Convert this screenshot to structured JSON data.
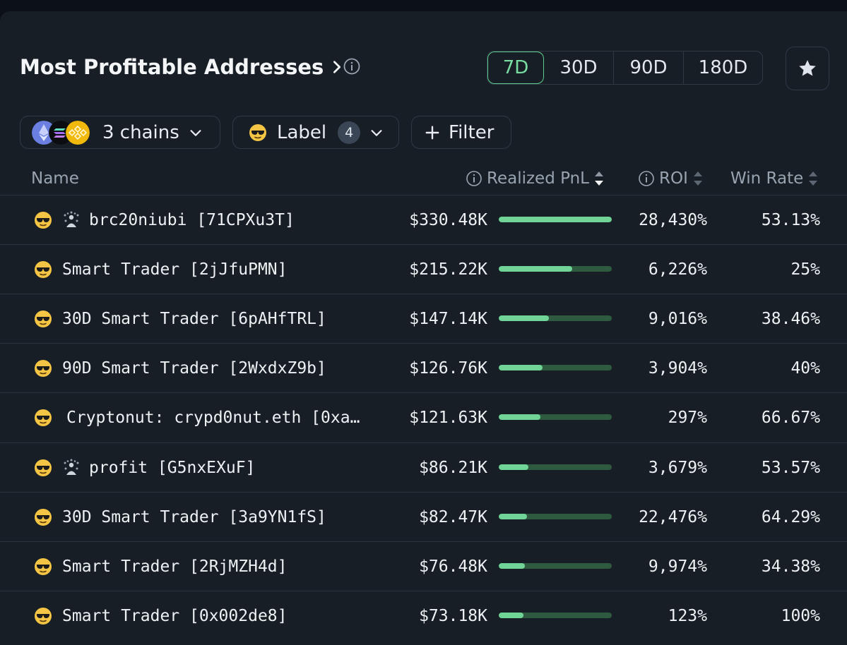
{
  "header": {
    "title": "Most Profitable Addresses",
    "timeframes": [
      {
        "label": "7D",
        "active": true
      },
      {
        "label": "30D",
        "active": false
      },
      {
        "label": "90D",
        "active": false
      },
      {
        "label": "180D",
        "active": false
      }
    ]
  },
  "filters": {
    "chains_label": "3 chains",
    "label_label": "Label",
    "label_count": "4",
    "filter_label": "Filter"
  },
  "columns": {
    "name": "Name",
    "pnl": "Realized PnL",
    "roi": "ROI",
    "win_rate": "Win Rate"
  },
  "rows": [
    {
      "name": "brc20niubi [71CPXu3T]",
      "entity_icon": true,
      "pnl": "$330.48K",
      "pnl_fraction": 1.0,
      "roi": "28,430%",
      "win_rate": "53.13%"
    },
    {
      "name": "Smart Trader [2jJfuPMN]",
      "entity_icon": false,
      "pnl": "$215.22K",
      "pnl_fraction": 0.65,
      "roi": "6,226%",
      "win_rate": "25%"
    },
    {
      "name": "30D Smart Trader [6pAHfTRL]",
      "entity_icon": false,
      "pnl": "$147.14K",
      "pnl_fraction": 0.445,
      "roi": "9,016%",
      "win_rate": "38.46%"
    },
    {
      "name": "90D Smart Trader [2WxdxZ9b]",
      "entity_icon": false,
      "pnl": "$126.76K",
      "pnl_fraction": 0.385,
      "roi": "3,904%",
      "win_rate": "40%"
    },
    {
      "name": "Cryptonut: crypd0nut.eth [0xa…",
      "entity_icon": false,
      "pnl": "$121.63K",
      "pnl_fraction": 0.37,
      "roi": "297%",
      "win_rate": "66.67%"
    },
    {
      "name": "profit [G5nxEXuF]",
      "entity_icon": true,
      "pnl": "$86.21K",
      "pnl_fraction": 0.26,
      "roi": "3,679%",
      "win_rate": "53.57%"
    },
    {
      "name": "30D Smart Trader [3a9YN1fS]",
      "entity_icon": false,
      "pnl": "$82.47K",
      "pnl_fraction": 0.25,
      "roi": "22,476%",
      "win_rate": "64.29%"
    },
    {
      "name": "Smart Trader [2RjMZH4d]",
      "entity_icon": false,
      "pnl": "$76.48K",
      "pnl_fraction": 0.23,
      "roi": "9,974%",
      "win_rate": "34.38%"
    },
    {
      "name": "Smart Trader [0x002de8]",
      "entity_icon": false,
      "pnl": "$73.18K",
      "pnl_fraction": 0.22,
      "roi": "123%",
      "win_rate": "100%"
    }
  ],
  "colors": {
    "accent": "#5ccc8c",
    "bar_fill": "#6fd495",
    "bar_track": "#2e5a40",
    "background": "#171e26"
  },
  "icons": [
    "chevron-right-icon",
    "info-icon",
    "star-icon",
    "ethereum-icon",
    "solana-icon",
    "bnb-icon",
    "sunglasses-emoji-icon",
    "chevron-down-icon",
    "plus-icon",
    "sort-icon",
    "entity-icon"
  ]
}
